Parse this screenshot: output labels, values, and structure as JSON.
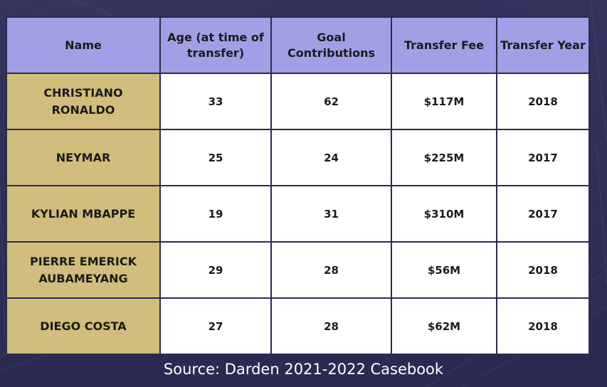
{
  "table": {
    "headers": [
      "Name",
      "Age (at time of transfer)",
      "Goal Contributions",
      "Transfer Fee",
      "Transfer Year"
    ],
    "rows": [
      [
        "CHRISTIANO RONALDO",
        "33",
        "62",
        "$117M",
        "2018"
      ],
      [
        "NEYMAR",
        "25",
        "24",
        "$225M",
        "2017"
      ],
      [
        "KYLIAN MBAPPE",
        "19",
        "31",
        "$310M",
        "2017"
      ],
      [
        "PIERRE EMERICK AUBAMEYANG",
        "29",
        "28",
        "$56M",
        "2018"
      ],
      [
        "DIEGO COSTA",
        "27",
        "28",
        "$62M",
        "2018"
      ]
    ]
  },
  "source_text": "Source: Darden 2021-2022 Casebook",
  "colors": {
    "background": "#2b2a52",
    "header_fill": "#a19fe6",
    "name_fill": "#d1bd7c",
    "cell_fill": "#ffffff"
  }
}
